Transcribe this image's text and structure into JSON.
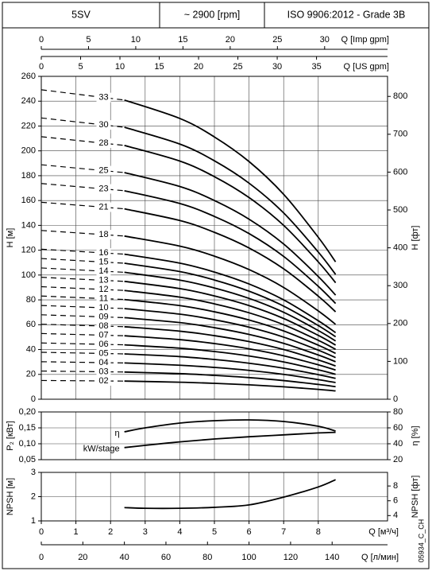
{
  "header": {
    "model": "5SV",
    "speed": "~ 2900 [rpm]",
    "standard": "ISO 9906:2012 - Grade 3B"
  },
  "code": "05934_C_CH",
  "chart_data": [
    {
      "type": "line",
      "ylabel": "H [м]",
      "y2label": "H [фт]",
      "xlim": [
        0,
        10
      ],
      "ylim": [
        0,
        260
      ],
      "yticks": [
        0,
        20,
        40,
        60,
        80,
        100,
        120,
        140,
        160,
        180,
        200,
        220,
        240,
        260
      ],
      "y2lim": [
        0,
        853.02
      ],
      "y2ticks": [
        0,
        100,
        200,
        300,
        400,
        500,
        600,
        700,
        800
      ],
      "grid": true,
      "color": "#000000",
      "dashed_first_segment": true,
      "top_axes": [
        {
          "label": "Q [Imp gpm]",
          "lim": [
            0,
            36.66
          ],
          "ticks": [
            0,
            5,
            10,
            15,
            20,
            25,
            30
          ]
        },
        {
          "label": "Q [US gpm]",
          "lim": [
            0,
            44.03
          ],
          "ticks": [
            0,
            5,
            10,
            15,
            20,
            25,
            30,
            35
          ]
        }
      ],
      "x": [
        0,
        2.4,
        4,
        5,
        6,
        7,
        8,
        8.5
      ],
      "series": [
        {
          "name": "02",
          "values": [
            15.1,
            14.6,
            13.7,
            12.8,
            11.6,
            10,
            7.9,
            6.7
          ]
        },
        {
          "name": "03",
          "values": [
            22.7,
            21.9,
            20.6,
            19.2,
            17.4,
            15,
            11.9,
            10.1
          ]
        },
        {
          "name": "04",
          "values": [
            30.2,
            29.2,
            27.4,
            25.6,
            23.2,
            20,
            15.8,
            13.4
          ]
        },
        {
          "name": "05",
          "values": [
            37.8,
            36.5,
            34.3,
            32,
            29,
            25,
            19.8,
            16.8
          ]
        },
        {
          "name": "06",
          "values": [
            45.3,
            43.8,
            41.1,
            38.4,
            34.8,
            30,
            23.7,
            20.1
          ]
        },
        {
          "name": "07",
          "values": [
            52.9,
            51.1,
            48,
            44.8,
            40.6,
            35,
            27.7,
            23.5
          ]
        },
        {
          "name": "08",
          "values": [
            60.4,
            58.4,
            54.8,
            51.2,
            46.4,
            40,
            31.6,
            26.8
          ]
        },
        {
          "name": "09",
          "values": [
            68,
            65.7,
            61.7,
            57.6,
            52.2,
            45,
            35.6,
            30.2
          ]
        },
        {
          "name": "10",
          "values": [
            75.5,
            73,
            68.5,
            64,
            58,
            50,
            39.5,
            33.5
          ]
        },
        {
          "name": "11",
          "values": [
            83.1,
            80.3,
            75.4,
            70.4,
            63.8,
            55,
            43.5,
            36.9
          ]
        },
        {
          "name": "12",
          "values": [
            90.6,
            87.6,
            82.2,
            76.8,
            69.6,
            60,
            47.4,
            40.2
          ]
        },
        {
          "name": "13",
          "values": [
            98.2,
            94.9,
            89.1,
            83.2,
            75.4,
            65,
            51.4,
            43.6
          ]
        },
        {
          "name": "14",
          "values": [
            105.7,
            102.2,
            95.9,
            89.6,
            81.2,
            70,
            55.3,
            46.9
          ]
        },
        {
          "name": "15",
          "values": [
            113.3,
            109.5,
            102.8,
            96,
            87,
            75,
            59.3,
            50.3
          ]
        },
        {
          "name": "16",
          "values": [
            120.8,
            116.8,
            109.6,
            102.4,
            92.8,
            80,
            63.2,
            53.6
          ]
        },
        {
          "name": "18",
          "values": [
            135.9,
            131.4,
            123.3,
            115.2,
            104.4,
            90,
            71.1,
            60.3
          ]
        },
        {
          "name": "21",
          "values": [
            158.6,
            153.3,
            143.9,
            134.4,
            121.8,
            105,
            83,
            70.4
          ]
        },
        {
          "name": "23",
          "values": [
            173.7,
            167.9,
            157.6,
            147.2,
            133.4,
            115,
            90.9,
            77.1
          ]
        },
        {
          "name": "25",
          "values": [
            188.8,
            182.5,
            171.3,
            160,
            145,
            125,
            98.8,
            83.8
          ]
        },
        {
          "name": "28",
          "values": [
            211.4,
            204.4,
            191.8,
            179.2,
            162.4,
            140,
            110.6,
            93.8
          ]
        },
        {
          "name": "30",
          "values": [
            226.5,
            219,
            205.5,
            192,
            174,
            150,
            118.5,
            100.5
          ]
        },
        {
          "name": "33",
          "values": [
            249.2,
            240.9,
            226.1,
            211.2,
            191.4,
            165,
            130.4,
            110.6
          ]
        }
      ]
    },
    {
      "type": "line",
      "ylabel": "P₂ [кВт]",
      "y2label": "η [%]",
      "xlim": [
        0,
        10
      ],
      "ylim": [
        0.05,
        0.2
      ],
      "yticks": [
        {
          "value": 0.05,
          "label": "0,05"
        },
        {
          "value": 0.1,
          "label": "0,10"
        },
        {
          "value": 0.15,
          "label": "0,15"
        },
        {
          "value": 0.2,
          "label": "0,20"
        }
      ],
      "y2lim": [
        20,
        80
      ],
      "y2ticks": [
        20,
        40,
        60,
        80
      ],
      "grid": true,
      "color": "#000000",
      "x": [
        2.4,
        3,
        4,
        5,
        6,
        7,
        8,
        8.5
      ],
      "series": [
        {
          "name": "η",
          "axis": "y2",
          "values": [
            55,
            60,
            66,
            69,
            70,
            68,
            62,
            56
          ]
        },
        {
          "name": "kW/stage",
          "values": [
            0.088,
            0.095,
            0.106,
            0.115,
            0.122,
            0.128,
            0.134,
            0.136
          ]
        }
      ]
    },
    {
      "type": "line",
      "ylabel": "NPSH [м]",
      "y2label": "NPSH [фт]",
      "xlim": [
        0,
        10
      ],
      "ylim": [
        1,
        3
      ],
      "yticks": [
        1,
        2,
        3
      ],
      "y2lim": [
        3.28,
        9.84
      ],
      "y2ticks": [
        4,
        6,
        8
      ],
      "grid": true,
      "color": "#000000",
      "xlabel": "Q [м³/ч]",
      "xticks": [
        0,
        1,
        2,
        3,
        4,
        5,
        6,
        7,
        8
      ],
      "bottom_axes": [
        {
          "label": "Q [л/мин]",
          "lim": [
            0,
            166.67
          ],
          "ticks": [
            0,
            20,
            40,
            60,
            80,
            100,
            120,
            140
          ]
        }
      ],
      "x": [
        2.4,
        3,
        4,
        5,
        6,
        7,
        8,
        8.5
      ],
      "values": [
        1.55,
        1.52,
        1.52,
        1.56,
        1.66,
        1.98,
        2.4,
        2.7
      ]
    }
  ]
}
